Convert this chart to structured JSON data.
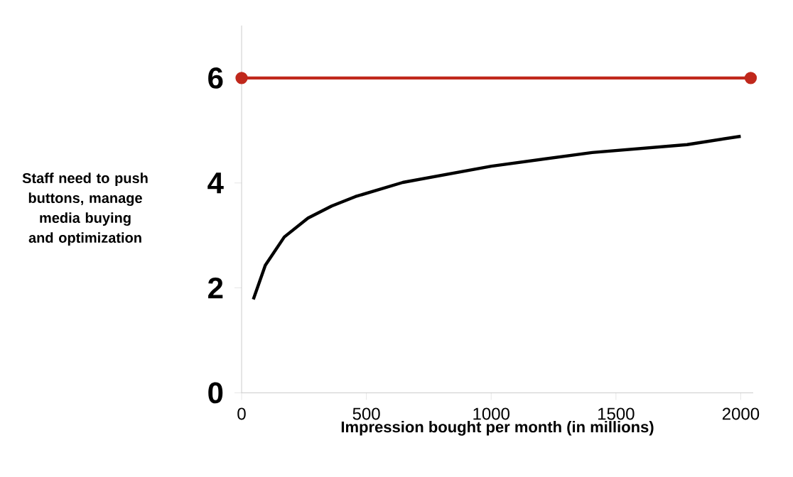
{
  "chart_data": {
    "type": "line",
    "xlabel": "Impression bought per month (in millions)",
    "ylabel": "Staff need to push buttons, manage media buying and optimization",
    "xlim": [
      0,
      2050
    ],
    "ylim": [
      0,
      7
    ],
    "xticks": [
      0,
      500,
      1000,
      1500,
      2000
    ],
    "yticks": [
      0,
      2,
      4,
      6
    ],
    "grid": false,
    "line_style": "solid",
    "series": [
      {
        "color": "#c0281c",
        "marker": "circle",
        "x": [
          0,
          2040
        ],
        "values": [
          6,
          6
        ]
      },
      {
        "color": "#000000",
        "marker": "none",
        "x": [
          47,
          95,
          171,
          266,
          361,
          456,
          646,
          1001,
          1405,
          1785,
          2000
        ],
        "values": [
          1.78,
          2.43,
          2.97,
          3.33,
          3.56,
          3.74,
          4.01,
          4.32,
          4.58,
          4.73,
          4.89
        ]
      }
    ]
  }
}
